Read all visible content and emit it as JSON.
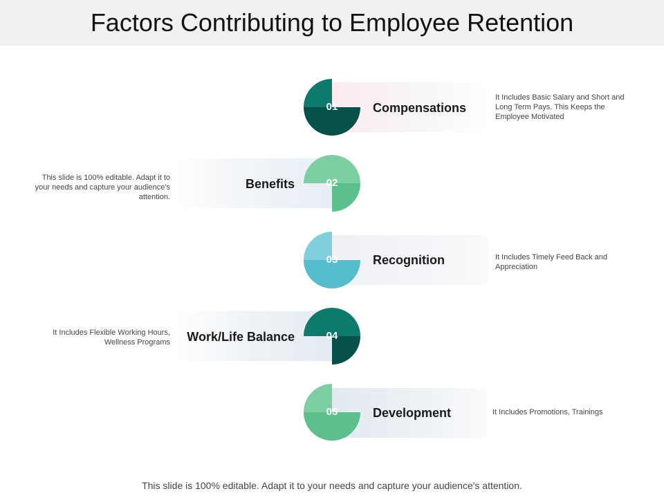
{
  "title": "Factors Contributing to Employee Retention",
  "colors": {
    "teal_light": "#0e7a6e",
    "teal_dark": "#06504a",
    "green_light": "#7ccfa3",
    "green_dark": "#5bbf8e",
    "cyan_light": "#7fcfdc",
    "cyan_dark": "#55bccc"
  },
  "steps": [
    {
      "number": "01",
      "label": "Compensations",
      "description": "It Includes Basic Salary and Short and Long Term Pays. This Keeps the Employee Motivated"
    },
    {
      "number": "02",
      "label": "Benefits",
      "description": "This slide is 100% editable. Adapt it to your needs and capture your audience's attention."
    },
    {
      "number": "03",
      "label": "Recognition",
      "description": "It Includes Timely Feed Back and Appreciation"
    },
    {
      "number": "04",
      "label": "Work/Life Balance",
      "description": "It Includes Flexible Working Hours, Wellness Programs"
    },
    {
      "number": "05",
      "label": "Development",
      "description": "It Includes Promotions, Trainings"
    }
  ],
  "footer": "This slide is 100% editable. Adapt it to your needs and capture your audience's attention."
}
